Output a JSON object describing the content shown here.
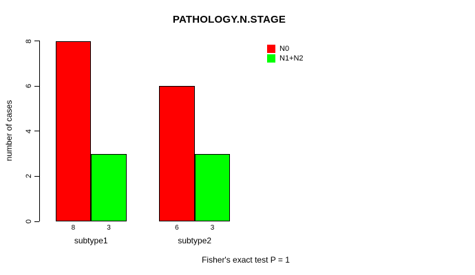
{
  "chart_data": {
    "type": "bar",
    "title": "PATHOLOGY.N.STAGE",
    "xlabel": "",
    "ylabel": "number of cases",
    "categories": [
      "subtype1",
      "subtype2"
    ],
    "series": [
      {
        "name": "N0",
        "color": "#ff0000",
        "values": [
          8,
          6
        ]
      },
      {
        "name": "N1+N2",
        "color": "#00ff00",
        "values": [
          3,
          3
        ]
      }
    ],
    "bar_value_labels": [
      [
        "8",
        "3"
      ],
      [
        "6",
        "3"
      ]
    ],
    "ylim": [
      0,
      8
    ],
    "yticks": [
      "0",
      "2",
      "4",
      "6",
      "8"
    ],
    "grid": false,
    "legend_position": "top-right-inside",
    "bar_border_color": "#000000",
    "background_color": "#ffffff",
    "annotation": "Fisher's exact test P = 1"
  }
}
